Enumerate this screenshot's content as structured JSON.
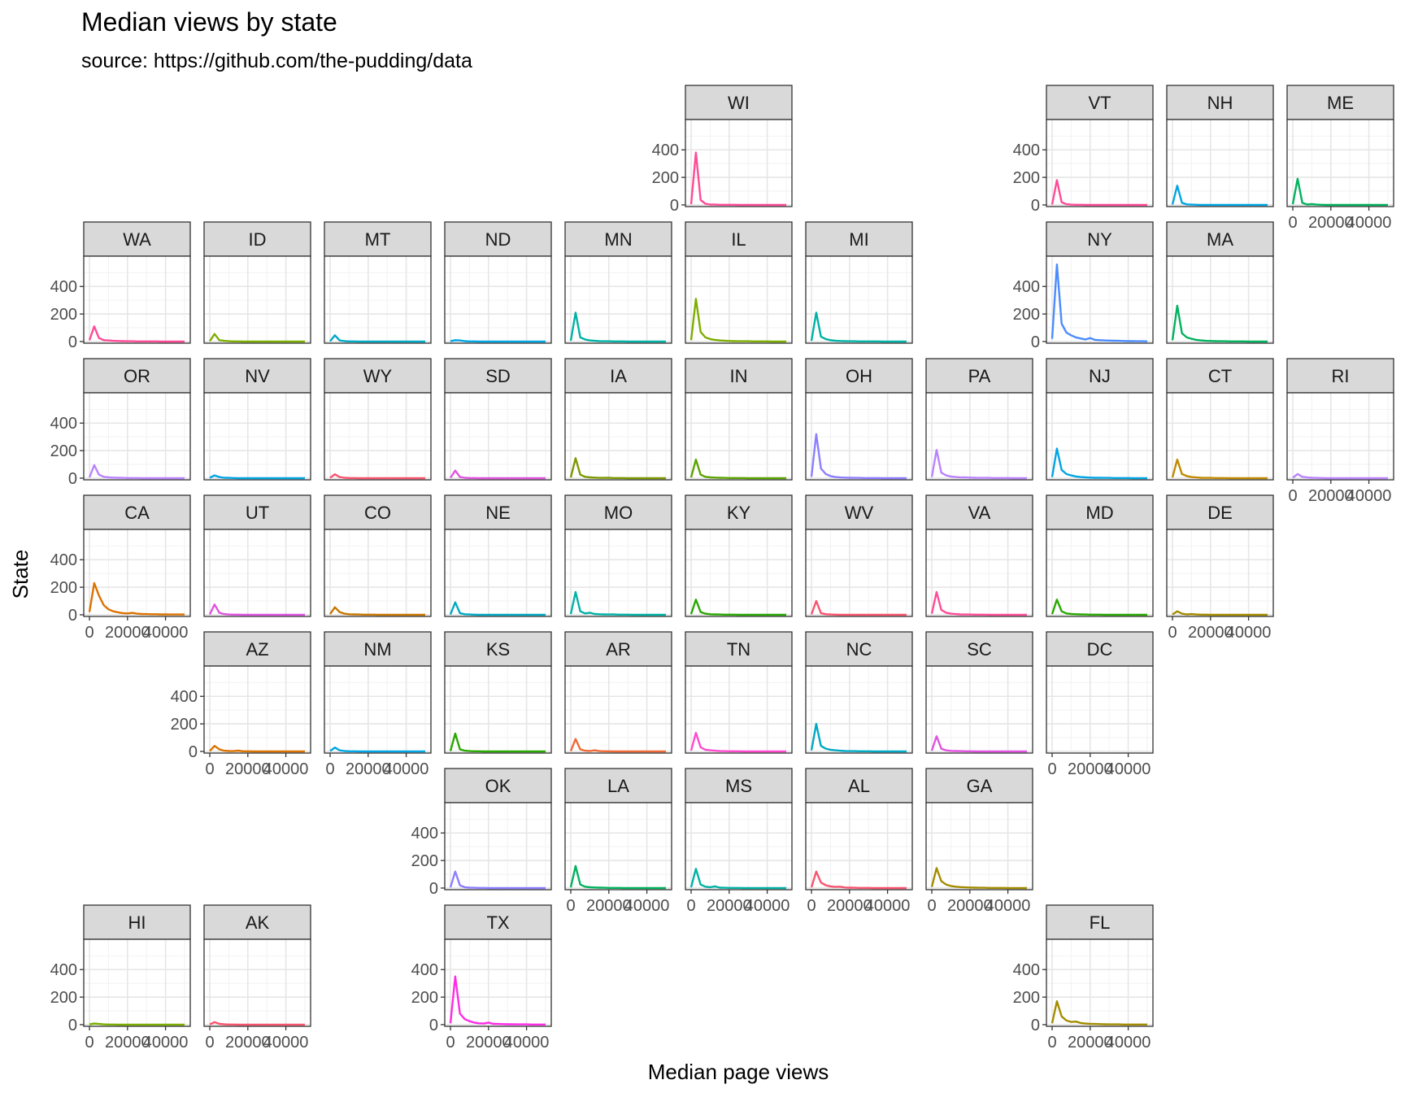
{
  "chart_data": {
    "type": "line",
    "layout": "geofacet small multiples (US state grid)",
    "title": "Median views by state",
    "subtitle": "source: https://github.com/the-pudding/data",
    "xlabel": "Median page views",
    "ylabel": "State",
    "xlim": [
      -3000,
      53000
    ],
    "ylim": [
      -12,
      620
    ],
    "x_ticks": [
      0,
      20000,
      40000
    ],
    "x_tick_labels": [
      "0",
      "20000",
      "40000"
    ],
    "y_ticks": [
      0,
      200,
      400
    ],
    "y_tick_labels": [
      "0",
      "200",
      "400"
    ],
    "grid": true,
    "theme": "bw",
    "x": [
      0,
      2500,
      5000,
      7500,
      10000,
      12500,
      15000,
      17500,
      20000,
      22500,
      25000,
      27500,
      30000,
      32500,
      35000,
      37500,
      40000,
      42500,
      45000,
      47500,
      50000
    ],
    "panels": [
      {
        "state": "WI",
        "color": "#FF4A98",
        "values": [
          5,
          380,
          35,
          8,
          3,
          2,
          1,
          1,
          1,
          1,
          0,
          0,
          0,
          0,
          0,
          0,
          0,
          0,
          0,
          0,
          0
        ]
      },
      {
        "state": "VT",
        "color": "#FF4A98",
        "values": [
          3,
          180,
          20,
          5,
          2,
          1,
          1,
          0,
          0,
          0,
          0,
          0,
          0,
          0,
          0,
          0,
          0,
          0,
          0,
          0,
          0
        ]
      },
      {
        "state": "NH",
        "color": "#00A5E3",
        "values": [
          3,
          140,
          15,
          4,
          2,
          1,
          0,
          0,
          0,
          0,
          0,
          0,
          0,
          0,
          0,
          0,
          0,
          0,
          0,
          0,
          0
        ]
      },
      {
        "state": "ME",
        "color": "#00B25D",
        "values": [
          5,
          190,
          15,
          3,
          6,
          2,
          1,
          0,
          0,
          0,
          0,
          0,
          0,
          0,
          0,
          0,
          0,
          0,
          0,
          0,
          0
        ]
      },
      {
        "state": "WA",
        "color": "#FF4A98",
        "values": [
          10,
          110,
          25,
          10,
          8,
          5,
          4,
          3,
          2,
          2,
          1,
          1,
          1,
          1,
          1,
          0,
          0,
          0,
          0,
          0,
          0
        ]
      },
      {
        "state": "ID",
        "color": "#7CAE00",
        "values": [
          3,
          55,
          10,
          5,
          2,
          1,
          1,
          0,
          0,
          0,
          0,
          0,
          0,
          0,
          0,
          0,
          0,
          0,
          0,
          0,
          0
        ]
      },
      {
        "state": "MT",
        "color": "#00A9C3",
        "values": [
          2,
          45,
          8,
          3,
          1,
          1,
          0,
          0,
          0,
          0,
          0,
          0,
          0,
          0,
          0,
          0,
          0,
          0,
          0,
          0,
          0
        ]
      },
      {
        "state": "ND",
        "color": "#00A5E3",
        "values": [
          2,
          10,
          8,
          3,
          1,
          1,
          0,
          0,
          0,
          0,
          0,
          0,
          0,
          0,
          0,
          0,
          0,
          0,
          0,
          0,
          0
        ]
      },
      {
        "state": "MN",
        "color": "#00B2A5",
        "values": [
          5,
          210,
          30,
          15,
          8,
          5,
          3,
          2,
          2,
          1,
          1,
          1,
          0,
          0,
          0,
          0,
          0,
          0,
          0,
          0,
          0
        ]
      },
      {
        "state": "IL",
        "color": "#7CAE00",
        "values": [
          10,
          310,
          70,
          30,
          18,
          12,
          8,
          6,
          4,
          3,
          2,
          2,
          2,
          1,
          1,
          1,
          1,
          0,
          0,
          0,
          0
        ]
      },
      {
        "state": "MI",
        "color": "#00B2A5",
        "values": [
          5,
          210,
          35,
          18,
          10,
          6,
          4,
          3,
          2,
          2,
          1,
          1,
          1,
          1,
          1,
          0,
          0,
          0,
          0,
          0,
          0
        ]
      },
      {
        "state": "NY",
        "color": "#4B8BFF",
        "values": [
          20,
          560,
          130,
          65,
          45,
          30,
          22,
          15,
          25,
          12,
          10,
          8,
          7,
          6,
          5,
          4,
          3,
          3,
          2,
          2,
          1
        ]
      },
      {
        "state": "MA",
        "color": "#00B25D",
        "values": [
          10,
          260,
          60,
          30,
          20,
          12,
          8,
          5,
          4,
          3,
          2,
          2,
          1,
          1,
          1,
          1,
          0,
          0,
          0,
          0,
          0
        ]
      },
      {
        "state": "OR",
        "color": "#B983FF",
        "values": [
          5,
          95,
          25,
          10,
          6,
          4,
          3,
          2,
          1,
          1,
          1,
          0,
          0,
          0,
          0,
          0,
          0,
          0,
          0,
          0,
          0
        ]
      },
      {
        "state": "NV",
        "color": "#00A5E3",
        "values": [
          3,
          20,
          8,
          3,
          2,
          1,
          0,
          0,
          0,
          0,
          0,
          0,
          0,
          0,
          0,
          0,
          0,
          0,
          0,
          0,
          0
        ]
      },
      {
        "state": "WY",
        "color": "#F8546E",
        "values": [
          3,
          28,
          8,
          3,
          1,
          1,
          0,
          0,
          0,
          0,
          0,
          0,
          0,
          0,
          0,
          0,
          0,
          0,
          0,
          0,
          0
        ]
      },
      {
        "state": "SD",
        "color": "#E052E0",
        "values": [
          3,
          55,
          8,
          3,
          1,
          1,
          0,
          0,
          0,
          0,
          0,
          0,
          0,
          0,
          0,
          0,
          0,
          0,
          0,
          0,
          0
        ]
      },
      {
        "state": "IA",
        "color": "#7C9800",
        "values": [
          5,
          145,
          25,
          10,
          6,
          4,
          2,
          2,
          3,
          1,
          1,
          1,
          0,
          0,
          0,
          0,
          0,
          0,
          0,
          0,
          0
        ]
      },
      {
        "state": "IN",
        "color": "#5BA300",
        "values": [
          5,
          135,
          25,
          10,
          6,
          4,
          3,
          2,
          1,
          1,
          1,
          1,
          0,
          0,
          0,
          0,
          0,
          0,
          0,
          0,
          0
        ]
      },
      {
        "state": "OH",
        "color": "#8C7EFF",
        "values": [
          10,
          320,
          70,
          30,
          15,
          8,
          5,
          4,
          3,
          2,
          2,
          1,
          1,
          1,
          1,
          0,
          0,
          0,
          0,
          0,
          0
        ]
      },
      {
        "state": "PA",
        "color": "#B983FF",
        "values": [
          8,
          205,
          40,
          20,
          12,
          8,
          5,
          6,
          4,
          3,
          2,
          2,
          2,
          1,
          1,
          1,
          1,
          0,
          0,
          0,
          0
        ]
      },
      {
        "state": "NJ",
        "color": "#00A5E3",
        "values": [
          8,
          215,
          60,
          30,
          20,
          12,
          8,
          6,
          4,
          3,
          3,
          2,
          2,
          1,
          1,
          1,
          1,
          0,
          0,
          0,
          0
        ]
      },
      {
        "state": "CT",
        "color": "#C08B00",
        "values": [
          5,
          135,
          30,
          15,
          8,
          5,
          3,
          2,
          2,
          1,
          1,
          1,
          0,
          0,
          0,
          0,
          0,
          0,
          0,
          0,
          0
        ]
      },
      {
        "state": "RI",
        "color": "#B983FF",
        "values": [
          3,
          30,
          10,
          5,
          3,
          2,
          1,
          0,
          0,
          0,
          0,
          0,
          0,
          0,
          0,
          0,
          0,
          0,
          0,
          0,
          0
        ]
      },
      {
        "state": "CA",
        "color": "#DB7200",
        "values": [
          20,
          230,
          140,
          70,
          40,
          25,
          18,
          12,
          10,
          14,
          8,
          6,
          5,
          4,
          4,
          3,
          3,
          2,
          2,
          2,
          2
        ]
      },
      {
        "state": "UT",
        "color": "#E052E0",
        "values": [
          3,
          75,
          15,
          5,
          2,
          1,
          1,
          0,
          0,
          0,
          0,
          0,
          0,
          0,
          0,
          0,
          0,
          0,
          0,
          0,
          0
        ]
      },
      {
        "state": "CO",
        "color": "#C77700",
        "values": [
          5,
          55,
          20,
          8,
          4,
          3,
          2,
          1,
          1,
          1,
          0,
          0,
          0,
          0,
          0,
          0,
          0,
          0,
          0,
          0,
          0
        ]
      },
      {
        "state": "NE",
        "color": "#00A9C3",
        "values": [
          3,
          90,
          12,
          4,
          2,
          1,
          0,
          0,
          0,
          0,
          0,
          0,
          0,
          0,
          0,
          0,
          0,
          0,
          0,
          0,
          0
        ]
      },
      {
        "state": "MO",
        "color": "#00B2A5",
        "values": [
          5,
          165,
          25,
          10,
          15,
          6,
          4,
          3,
          2,
          3,
          1,
          1,
          1,
          0,
          0,
          0,
          0,
          0,
          0,
          0,
          0
        ]
      },
      {
        "state": "KY",
        "color": "#28A800",
        "values": [
          5,
          110,
          20,
          8,
          4,
          3,
          2,
          1,
          1,
          1,
          0,
          0,
          0,
          0,
          0,
          0,
          0,
          0,
          0,
          0,
          0
        ]
      },
      {
        "state": "WV",
        "color": "#F8546E",
        "values": [
          3,
          100,
          12,
          4,
          2,
          1,
          0,
          0,
          0,
          0,
          0,
          0,
          0,
          0,
          0,
          0,
          0,
          0,
          0,
          0,
          0
        ]
      },
      {
        "state": "VA",
        "color": "#FF4A98",
        "values": [
          8,
          165,
          35,
          15,
          8,
          5,
          3,
          2,
          2,
          1,
          1,
          1,
          0,
          0,
          0,
          0,
          0,
          0,
          0,
          0,
          0
        ]
      },
      {
        "state": "MD",
        "color": "#28A800",
        "values": [
          5,
          110,
          25,
          10,
          6,
          4,
          3,
          2,
          1,
          1,
          1,
          0,
          0,
          0,
          0,
          0,
          0,
          0,
          0,
          0,
          0
        ]
      },
      {
        "state": "DE",
        "color": "#A38C00",
        "values": [
          3,
          25,
          8,
          3,
          5,
          2,
          1,
          1,
          0,
          0,
          0,
          0,
          0,
          0,
          0,
          0,
          0,
          0,
          0,
          0,
          0
        ]
      },
      {
        "state": "AZ",
        "color": "#DB7200",
        "values": [
          3,
          40,
          15,
          5,
          3,
          2,
          6,
          1,
          1,
          0,
          0,
          0,
          0,
          0,
          0,
          0,
          0,
          0,
          0,
          0,
          0
        ]
      },
      {
        "state": "NM",
        "color": "#00A5E3",
        "values": [
          3,
          28,
          8,
          3,
          1,
          1,
          0,
          0,
          0,
          0,
          0,
          0,
          0,
          0,
          0,
          0,
          0,
          0,
          0,
          0,
          0
        ]
      },
      {
        "state": "KS",
        "color": "#28A800",
        "values": [
          3,
          130,
          15,
          5,
          2,
          1,
          1,
          0,
          0,
          0,
          0,
          0,
          0,
          0,
          0,
          0,
          0,
          0,
          0,
          0,
          0
        ]
      },
      {
        "state": "AR",
        "color": "#EE6A37",
        "values": [
          3,
          90,
          15,
          5,
          3,
          8,
          2,
          1,
          1,
          0,
          0,
          0,
          0,
          0,
          0,
          0,
          0,
          0,
          0,
          0,
          0
        ]
      },
      {
        "state": "TN",
        "color": "#FF4AD0",
        "values": [
          5,
          135,
          30,
          12,
          8,
          5,
          3,
          2,
          1,
          1,
          1,
          0,
          0,
          0,
          0,
          0,
          0,
          0,
          0,
          0,
          0
        ]
      },
      {
        "state": "NC",
        "color": "#00A9C3",
        "values": [
          8,
          200,
          40,
          20,
          12,
          8,
          5,
          3,
          2,
          2,
          1,
          1,
          1,
          0,
          0,
          0,
          0,
          0,
          0,
          0,
          0
        ]
      },
      {
        "state": "SC",
        "color": "#E052E0",
        "values": [
          5,
          110,
          20,
          8,
          4,
          3,
          2,
          1,
          1,
          0,
          0,
          0,
          0,
          0,
          0,
          0,
          0,
          0,
          0,
          0,
          0
        ]
      },
      {
        "state": "DC",
        "color": "#BBBBBB",
        "values": []
      },
      {
        "state": "OK",
        "color": "#8C7EFF",
        "values": [
          5,
          120,
          20,
          6,
          3,
          2,
          1,
          1,
          0,
          0,
          0,
          0,
          0,
          0,
          0,
          0,
          0,
          0,
          0,
          0,
          0
        ]
      },
      {
        "state": "LA",
        "color": "#00B25D",
        "values": [
          5,
          160,
          25,
          10,
          6,
          4,
          3,
          2,
          1,
          1,
          1,
          0,
          0,
          0,
          0,
          0,
          0,
          0,
          0,
          0,
          0
        ]
      },
      {
        "state": "MS",
        "color": "#00B2A5",
        "values": [
          5,
          140,
          25,
          10,
          6,
          12,
          3,
          2,
          1,
          1,
          1,
          0,
          0,
          0,
          0,
          0,
          0,
          0,
          0,
          0,
          0
        ]
      },
      {
        "state": "AL",
        "color": "#F8546E",
        "values": [
          5,
          120,
          40,
          20,
          12,
          8,
          10,
          4,
          3,
          2,
          1,
          1,
          1,
          0,
          0,
          0,
          0,
          0,
          0,
          0,
          0
        ]
      },
      {
        "state": "GA",
        "color": "#A38C00",
        "values": [
          8,
          145,
          50,
          25,
          15,
          10,
          7,
          5,
          4,
          3,
          2,
          2,
          1,
          1,
          1,
          1,
          0,
          0,
          0,
          0,
          0
        ]
      },
      {
        "state": "HI",
        "color": "#7CAE00",
        "values": [
          2,
          8,
          5,
          2,
          1,
          1,
          0,
          0,
          0,
          0,
          0,
          0,
          0,
          0,
          0,
          0,
          0,
          0,
          0,
          0,
          0
        ]
      },
      {
        "state": "AK",
        "color": "#F8546E",
        "values": [
          2,
          18,
          6,
          3,
          1,
          1,
          0,
          0,
          0,
          0,
          0,
          0,
          0,
          0,
          0,
          0,
          0,
          0,
          0,
          0,
          0
        ]
      },
      {
        "state": "TX",
        "color": "#FF2AE6",
        "values": [
          10,
          350,
          80,
          40,
          25,
          15,
          10,
          8,
          15,
          6,
          5,
          4,
          3,
          3,
          2,
          2,
          2,
          1,
          1,
          1,
          1
        ]
      },
      {
        "state": "FL",
        "color": "#A38C00",
        "values": [
          10,
          170,
          60,
          30,
          20,
          22,
          12,
          8,
          6,
          5,
          4,
          3,
          2,
          2,
          2,
          1,
          1,
          1,
          1,
          1,
          1
        ]
      }
    ]
  }
}
